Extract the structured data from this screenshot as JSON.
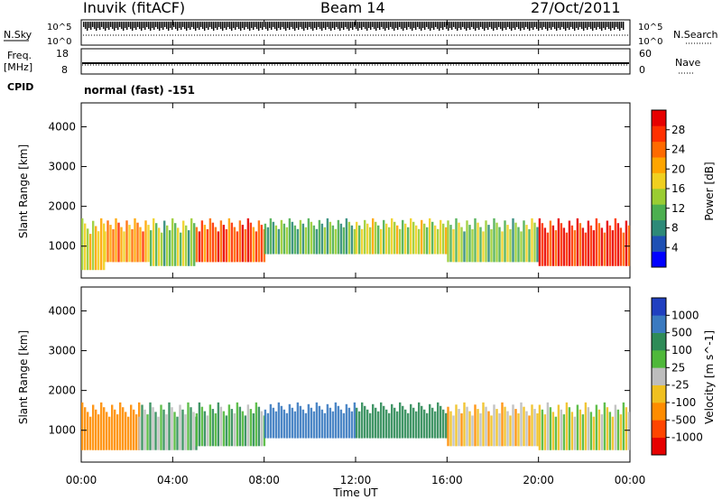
{
  "header": {
    "station": "Inuvik (fitACF)",
    "beam": "Beam 14",
    "date": "27/Oct/2011"
  },
  "top_panels": {
    "nsky_label": "N.Sky",
    "nsky_ticks": [
      "10^5",
      "10^0"
    ],
    "nsearch_label": "N.Search",
    "freq_label": "Freq.",
    "freq_unit": "[MHz]",
    "freq_ticks": [
      "18",
      "8"
    ],
    "nave_label": "Nave",
    "nave_ticks": [
      "60",
      "0"
    ],
    "cpid_label": "CPID",
    "cpid_value": "normal (fast) -151"
  },
  "colorbars": {
    "power": {
      "label": "Power [dB]",
      "ticks": [
        "28",
        "24",
        "20",
        "16",
        "12",
        "8",
        "4"
      ],
      "colors": [
        "#0000ff",
        "#1e50b4",
        "#2d8a78",
        "#4caf50",
        "#9acd32",
        "#f0d020",
        "#ffa500",
        "#ff6a00",
        "#ff3000",
        "#e60000"
      ]
    },
    "velocity": {
      "label": "Velocity [m s^-1]",
      "ticks": [
        "1000",
        "500",
        "100",
        "25",
        "-25",
        "-100",
        "-500",
        "-1000"
      ],
      "colors": [
        "#2040c0",
        "#3a7ac0",
        "#2e8b57",
        "#4fb83a",
        "#bdbdbd",
        "#f0c020",
        "#ff8c00",
        "#ff4500",
        "#e60000"
      ]
    }
  },
  "chart_data": [
    {
      "type": "heatmap",
      "title": "",
      "ylabel": "Slant Range [km]",
      "xlabel": "Time UT",
      "y_ticks": [
        "4000",
        "3000",
        "2000",
        "1000"
      ],
      "ylim": [
        200,
        4600
      ],
      "xlim": [
        0,
        24
      ],
      "x_ticks": [
        "00:00",
        "04:00",
        "08:00",
        "12:00",
        "16:00",
        "20:00",
        "00:00"
      ],
      "series": [
        {
          "x_start": 0.0,
          "x_end": 1.0,
          "y_low": 400,
          "y_high": 1700,
          "value": 16
        },
        {
          "x_start": 1.0,
          "x_end": 3.0,
          "y_low": 600,
          "y_high": 1700,
          "value": 20
        },
        {
          "x_start": 3.0,
          "x_end": 5.0,
          "y_low": 500,
          "y_high": 1700,
          "value": 12
        },
        {
          "x_start": 5.0,
          "x_end": 8.0,
          "y_low": 600,
          "y_high": 1700,
          "value": 24
        },
        {
          "x_start": 8.0,
          "x_end": 12.0,
          "y_low": 800,
          "y_high": 1700,
          "value": 10
        },
        {
          "x_start": 12.0,
          "x_end": 16.0,
          "y_low": 800,
          "y_high": 1700,
          "value": 14
        },
        {
          "x_start": 16.0,
          "x_end": 20.0,
          "y_low": 600,
          "y_high": 1700,
          "value": 12
        },
        {
          "x_start": 20.0,
          "x_end": 24.0,
          "y_low": 500,
          "y_high": 1700,
          "value": 26
        }
      ]
    },
    {
      "type": "heatmap",
      "title": "",
      "ylabel": "Slant Range [km]",
      "xlabel": "Time UT",
      "y_ticks": [
        "4000",
        "3000",
        "2000",
        "1000"
      ],
      "ylim": [
        200,
        4600
      ],
      "xlim": [
        0,
        24
      ],
      "x_ticks": [
        "00:00",
        "04:00",
        "08:00",
        "12:00",
        "16:00",
        "20:00",
        "00:00"
      ],
      "series": [
        {
          "x_start": 0.0,
          "x_end": 2.5,
          "y_low": 500,
          "y_high": 1700,
          "value": -300
        },
        {
          "x_start": 2.5,
          "x_end": 5.0,
          "y_low": 500,
          "y_high": 1700,
          "value": 60
        },
        {
          "x_start": 5.0,
          "x_end": 8.0,
          "y_low": 600,
          "y_high": 1700,
          "value": 80
        },
        {
          "x_start": 8.0,
          "x_end": 12.0,
          "y_low": 800,
          "y_high": 1700,
          "value": 600
        },
        {
          "x_start": 12.0,
          "x_end": 16.0,
          "y_low": 800,
          "y_high": 1700,
          "value": 300
        },
        {
          "x_start": 16.0,
          "x_end": 20.0,
          "y_low": 600,
          "y_high": 1700,
          "value": -60
        },
        {
          "x_start": 20.0,
          "x_end": 24.0,
          "y_low": 500,
          "y_high": 1700,
          "value": 0
        }
      ]
    }
  ]
}
